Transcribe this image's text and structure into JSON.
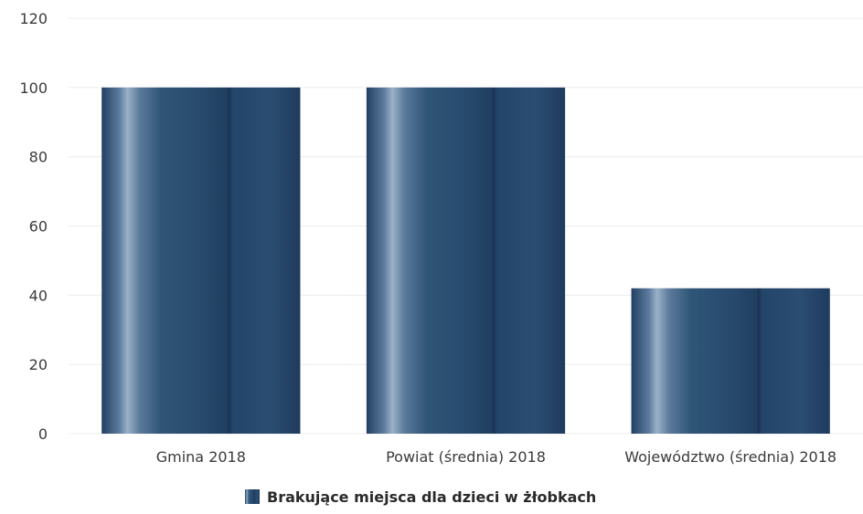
{
  "chart_data": {
    "type": "bar",
    "categories": [
      "Gmina 2018",
      "Powiat (średnia) 2018",
      "Województwo (średnia) 2018"
    ],
    "series": [
      {
        "name": "Brakujące miejsca dla dzieci w żłobkach",
        "values": [
          100,
          100,
          42
        ]
      }
    ],
    "yticks": [
      "0",
      "20",
      "40",
      "60",
      "80",
      "100",
      "120"
    ],
    "ylim": [
      0,
      120
    ],
    "grid": true,
    "legend_position": "bottom-center",
    "colors": {
      "bar_dark": "#1f3b5e",
      "bar_mid": "#2e5577",
      "bar_light": "#8aa3bd",
      "grid": "#ececec",
      "text": "#3a3a3a"
    }
  }
}
